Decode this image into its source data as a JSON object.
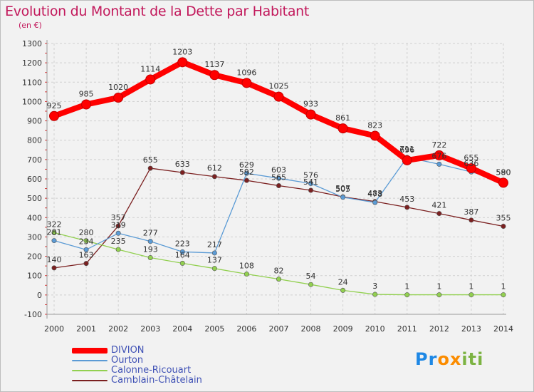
{
  "chart_data": {
    "type": "line",
    "title": "Evolution du Montant de la Dette par Habitant",
    "subtitle": "(en €)",
    "x": [
      "2000",
      "2001",
      "2002",
      "2003",
      "2004",
      "2005",
      "2006",
      "2007",
      "2008",
      "2009",
      "2010",
      "2011",
      "2012",
      "2013",
      "2014"
    ],
    "ylim": [
      -100,
      1300
    ],
    "yticks": [
      -100,
      0,
      100,
      200,
      300,
      400,
      500,
      600,
      700,
      800,
      900,
      1000,
      1100,
      1200,
      1300
    ],
    "grid": true,
    "legend_position": "bottom-left",
    "series": [
      {
        "name": "DIVION",
        "color": "#ff0000",
        "values": [
          925,
          985,
          1020,
          1114,
          1203,
          1137,
          1096,
          1025,
          933,
          861,
          823,
          696,
          722,
          655,
          580
        ]
      },
      {
        "name": "Ourton",
        "color": "#5b9bd5",
        "values": [
          281,
          234,
          319,
          277,
          223,
          217,
          629,
          603,
          576,
          505,
          478,
          711,
          676,
          636,
          590
        ]
      },
      {
        "name": "Calonne-Ricouart",
        "color": "#92d050",
        "values": [
          322,
          280,
          235,
          193,
          164,
          137,
          108,
          82,
          54,
          24,
          3,
          1,
          1,
          1,
          1
        ]
      },
      {
        "name": "Camblain-Châtelain",
        "color": "#7b2020",
        "values": [
          140,
          163,
          357,
          655,
          633,
          612,
          592,
          565,
          541,
          507,
          483,
          453,
          421,
          387,
          355
        ]
      }
    ]
  },
  "logo": {
    "text": "Proxiti",
    "letters": [
      "P",
      "r",
      "o",
      "x",
      "i",
      "t",
      "i"
    ],
    "colors": [
      "#1e88e5",
      "#1e88e5",
      "#fb8c00",
      "#fb8c00",
      "#7cb342",
      "#7cb342",
      "#7cb342"
    ]
  }
}
